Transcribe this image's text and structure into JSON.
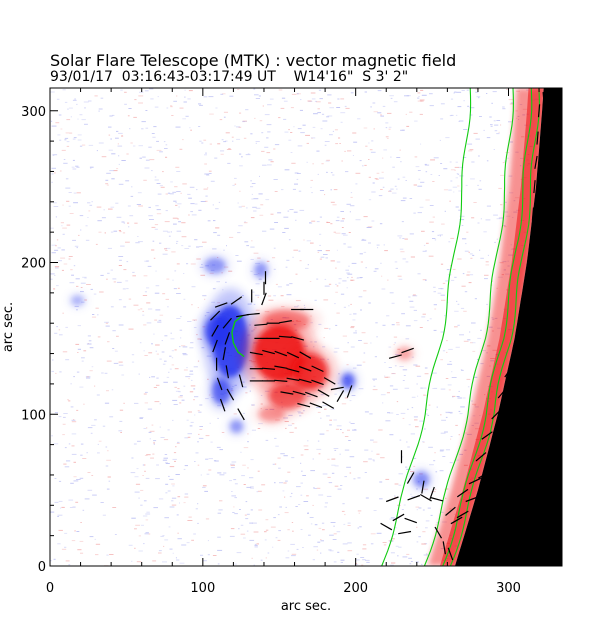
{
  "title_line1": "Solar Flare Telescope (MTK) : vector magnetic field",
  "title_line2": "93/01/17  03:16:43-03:17:49 UT    W14'16\"  S 3' 2\"",
  "colors": {
    "positive": "#ee1111",
    "negative": "#2233ee",
    "noise_positive": "#f2a8a8",
    "noise_negative": "#b4b8f2",
    "limb_contour": "#11cc11",
    "off_disk": "#000000",
    "vector": "#000000",
    "axes": "#000000"
  },
  "chart_data": {
    "type": "heatmap",
    "title": "Solar Flare Telescope (MTK) : vector magnetic field",
    "subtitle": "93/01/17  03:16:43-03:17:49 UT    W14'16\"  S 3' 2\"",
    "xlabel": "arc sec.",
    "ylabel": "arc sec.",
    "xlim": [
      0,
      335
    ],
    "ylim": [
      0,
      315
    ],
    "x_ticks": [
      0,
      100,
      200,
      300
    ],
    "y_ticks": [
      0,
      100,
      200,
      300
    ],
    "grid": false,
    "legend": "none",
    "colorscale": "blue (negative polarity) - white - red (positive polarity)",
    "regions": [
      {
        "polarity": "negative",
        "cx": 118,
        "cy": 148,
        "rx": 14,
        "ry": 28,
        "strength": 1.0
      },
      {
        "polarity": "negative",
        "cx": 110,
        "cy": 155,
        "rx": 10,
        "ry": 12,
        "strength": 0.9
      },
      {
        "polarity": "negative",
        "cx": 112,
        "cy": 115,
        "rx": 7,
        "ry": 10,
        "strength": 0.75
      },
      {
        "polarity": "negative",
        "cx": 108,
        "cy": 198,
        "rx": 8,
        "ry": 6,
        "strength": 0.5
      },
      {
        "polarity": "negative",
        "cx": 138,
        "cy": 195,
        "rx": 5,
        "ry": 6,
        "strength": 0.5
      },
      {
        "polarity": "negative",
        "cx": 122,
        "cy": 92,
        "rx": 5,
        "ry": 5,
        "strength": 0.5
      },
      {
        "polarity": "negative",
        "cx": 195,
        "cy": 122,
        "rx": 5,
        "ry": 6,
        "strength": 0.8
      },
      {
        "polarity": "negative",
        "cx": 243,
        "cy": 57,
        "rx": 6,
        "ry": 6,
        "strength": 0.55
      },
      {
        "polarity": "negative",
        "cx": 18,
        "cy": 175,
        "rx": 5,
        "ry": 4,
        "strength": 0.35
      },
      {
        "polarity": "positive",
        "cx": 150,
        "cy": 140,
        "rx": 20,
        "ry": 22,
        "strength": 1.0
      },
      {
        "polarity": "positive",
        "cx": 170,
        "cy": 128,
        "rx": 14,
        "ry": 14,
        "strength": 0.9
      },
      {
        "polarity": "positive",
        "cx": 155,
        "cy": 112,
        "rx": 14,
        "ry": 10,
        "strength": 0.7
      },
      {
        "polarity": "positive",
        "cx": 155,
        "cy": 162,
        "rx": 18,
        "ry": 8,
        "strength": 0.45
      },
      {
        "polarity": "positive",
        "cx": 145,
        "cy": 100,
        "rx": 10,
        "ry": 6,
        "strength": 0.4
      },
      {
        "polarity": "positive",
        "cx": 232,
        "cy": 140,
        "rx": 6,
        "ry": 5,
        "strength": 0.35
      }
    ],
    "limb_x_at_y": [
      [
        0,
        265
      ],
      [
        50,
        280
      ],
      [
        100,
        293
      ],
      [
        150,
        304
      ],
      [
        200,
        312
      ],
      [
        250,
        318
      ],
      [
        300,
        322
      ],
      [
        315,
        323
      ]
    ],
    "plage_band_width": 18,
    "limb_contours": [
      {
        "offset": -48,
        "y_from": 0,
        "y_to": 315
      },
      {
        "offset": -20,
        "y_from": 0,
        "y_to": 315
      },
      {
        "offset": -8,
        "y_from": 0,
        "y_to": 315
      },
      {
        "offset": -3,
        "y_from": 0,
        "y_to": 315
      }
    ],
    "neutral_line": [
      [
        126,
        165
      ],
      [
        121,
        161
      ],
      [
        119,
        154
      ],
      [
        120,
        147
      ],
      [
        123,
        141
      ],
      [
        127,
        138
      ]
    ],
    "vectors": [
      {
        "x": 112,
        "y": 172,
        "angle": 200
      },
      {
        "x": 122,
        "y": 175,
        "angle": 215
      },
      {
        "x": 132,
        "y": 178,
        "angle": 90
      },
      {
        "x": 140,
        "y": 183,
        "angle": 90
      },
      {
        "x": 141,
        "y": 190,
        "angle": 90
      },
      {
        "x": 140,
        "y": 176,
        "angle": 70
      },
      {
        "x": 108,
        "y": 165,
        "angle": 225
      },
      {
        "x": 116,
        "y": 160,
        "angle": 230
      },
      {
        "x": 126,
        "y": 165,
        "angle": 10
      },
      {
        "x": 133,
        "y": 166,
        "angle": 5
      },
      {
        "x": 108,
        "y": 155,
        "angle": 240
      },
      {
        "x": 116,
        "y": 150,
        "angle": 250
      },
      {
        "x": 108,
        "y": 145,
        "angle": 250
      },
      {
        "x": 114,
        "y": 140,
        "angle": 260
      },
      {
        "x": 109,
        "y": 133,
        "angle": 270
      },
      {
        "x": 116,
        "y": 128,
        "angle": 280
      },
      {
        "x": 111,
        "y": 120,
        "angle": 290
      },
      {
        "x": 118,
        "y": 113,
        "angle": 300
      },
      {
        "x": 113,
        "y": 106,
        "angle": 290
      },
      {
        "x": 125,
        "y": 100,
        "angle": 300
      },
      {
        "x": 125,
        "y": 122,
        "angle": 285
      },
      {
        "x": 138,
        "y": 159,
        "angle": 5
      },
      {
        "x": 146,
        "y": 160,
        "angle": 0
      },
      {
        "x": 154,
        "y": 161,
        "angle": 10
      },
      {
        "x": 162,
        "y": 169,
        "angle": 0
      },
      {
        "x": 168,
        "y": 169,
        "angle": 0
      },
      {
        "x": 138,
        "y": 150,
        "angle": 0
      },
      {
        "x": 146,
        "y": 150,
        "angle": 0
      },
      {
        "x": 154,
        "y": 151,
        "angle": 355
      },
      {
        "x": 162,
        "y": 150,
        "angle": 345
      },
      {
        "x": 135,
        "y": 140,
        "angle": 350
      },
      {
        "x": 143,
        "y": 141,
        "angle": 345
      },
      {
        "x": 151,
        "y": 140,
        "angle": 340
      },
      {
        "x": 159,
        "y": 139,
        "angle": 335
      },
      {
        "x": 167,
        "y": 139,
        "angle": 330
      },
      {
        "x": 135,
        "y": 130,
        "angle": 0
      },
      {
        "x": 143,
        "y": 130,
        "angle": 355
      },
      {
        "x": 151,
        "y": 131,
        "angle": 350
      },
      {
        "x": 159,
        "y": 129,
        "angle": 345
      },
      {
        "x": 167,
        "y": 130,
        "angle": 340
      },
      {
        "x": 175,
        "y": 130,
        "angle": 335
      },
      {
        "x": 135,
        "y": 122,
        "angle": 0
      },
      {
        "x": 143,
        "y": 122,
        "angle": 0
      },
      {
        "x": 151,
        "y": 122,
        "angle": 355
      },
      {
        "x": 159,
        "y": 123,
        "angle": 350
      },
      {
        "x": 167,
        "y": 122,
        "angle": 345
      },
      {
        "x": 175,
        "y": 121,
        "angle": 340
      },
      {
        "x": 183,
        "y": 122,
        "angle": 330
      },
      {
        "x": 155,
        "y": 114,
        "angle": 350
      },
      {
        "x": 163,
        "y": 114,
        "angle": 345
      },
      {
        "x": 171,
        "y": 113,
        "angle": 340
      },
      {
        "x": 179,
        "y": 114,
        "angle": 330
      },
      {
        "x": 166,
        "y": 106,
        "angle": 345
      },
      {
        "x": 174,
        "y": 106,
        "angle": 340
      },
      {
        "x": 182,
        "y": 106,
        "angle": 330
      },
      {
        "x": 190,
        "y": 112,
        "angle": 60
      },
      {
        "x": 196,
        "y": 115,
        "angle": 70
      },
      {
        "x": 188,
        "y": 117,
        "angle": 10
      },
      {
        "x": 226,
        "y": 138,
        "angle": 15
      },
      {
        "x": 234,
        "y": 142,
        "angle": 20
      },
      {
        "x": 230,
        "y": 72,
        "angle": 90
      },
      {
        "x": 236,
        "y": 58,
        "angle": 60
      },
      {
        "x": 244,
        "y": 52,
        "angle": 80
      },
      {
        "x": 250,
        "y": 48,
        "angle": 70
      },
      {
        "x": 238,
        "y": 45,
        "angle": 20
      },
      {
        "x": 246,
        "y": 45,
        "angle": 330
      },
      {
        "x": 253,
        "y": 44,
        "angle": 345
      },
      {
        "x": 224,
        "y": 44,
        "angle": 20
      },
      {
        "x": 220,
        "y": 26,
        "angle": 330
      },
      {
        "x": 236,
        "y": 30,
        "angle": 340
      },
      {
        "x": 228,
        "y": 32,
        "angle": 30
      },
      {
        "x": 232,
        "y": 22,
        "angle": 10
      },
      {
        "x": 254,
        "y": 22,
        "angle": 300
      },
      {
        "x": 258,
        "y": 12,
        "angle": 280
      },
      {
        "x": 262,
        "y": 8,
        "angle": 290
      },
      {
        "x": 266,
        "y": 30,
        "angle": 30
      },
      {
        "x": 270,
        "y": 34,
        "angle": 30
      },
      {
        "x": 262,
        "y": 36,
        "angle": 40
      },
      {
        "x": 270,
        "y": 48,
        "angle": 35
      },
      {
        "x": 276,
        "y": 44,
        "angle": 20
      },
      {
        "x": 278,
        "y": 56,
        "angle": 25
      },
      {
        "x": 284,
        "y": 60,
        "angle": 30
      },
      {
        "x": 282,
        "y": 72,
        "angle": 40
      },
      {
        "x": 290,
        "y": 76,
        "angle": 40
      },
      {
        "x": 286,
        "y": 86,
        "angle": 35
      },
      {
        "x": 294,
        "y": 90,
        "angle": 50
      },
      {
        "x": 292,
        "y": 100,
        "angle": 45
      },
      {
        "x": 298,
        "y": 104,
        "angle": 60
      },
      {
        "x": 296,
        "y": 114,
        "angle": 50
      },
      {
        "x": 302,
        "y": 118,
        "angle": 65
      },
      {
        "x": 300,
        "y": 128,
        "angle": 55
      },
      {
        "x": 306,
        "y": 132,
        "angle": 70
      },
      {
        "x": 304,
        "y": 142,
        "angle": 60
      },
      {
        "x": 309,
        "y": 146,
        "angle": 75
      },
      {
        "x": 307,
        "y": 156,
        "angle": 65
      },
      {
        "x": 311,
        "y": 160,
        "angle": 80
      },
      {
        "x": 309,
        "y": 170,
        "angle": 70
      },
      {
        "x": 314,
        "y": 174,
        "angle": 80
      },
      {
        "x": 311,
        "y": 186,
        "angle": 75
      },
      {
        "x": 316,
        "y": 190,
        "angle": 85
      },
      {
        "x": 313,
        "y": 200,
        "angle": 80
      },
      {
        "x": 317,
        "y": 206,
        "angle": 85
      },
      {
        "x": 315,
        "y": 216,
        "angle": 80
      },
      {
        "x": 319,
        "y": 222,
        "angle": 90
      },
      {
        "x": 316,
        "y": 232,
        "angle": 85
      },
      {
        "x": 320,
        "y": 238,
        "angle": 95
      },
      {
        "x": 317,
        "y": 250,
        "angle": 85
      },
      {
        "x": 321,
        "y": 256,
        "angle": 90
      },
      {
        "x": 318,
        "y": 266,
        "angle": 80
      },
      {
        "x": 322,
        "y": 272,
        "angle": 95
      },
      {
        "x": 319,
        "y": 282,
        "angle": 85
      },
      {
        "x": 322,
        "y": 290,
        "angle": 90
      },
      {
        "x": 320,
        "y": 300,
        "angle": 85
      },
      {
        "x": 323,
        "y": 308,
        "angle": 95
      }
    ]
  }
}
